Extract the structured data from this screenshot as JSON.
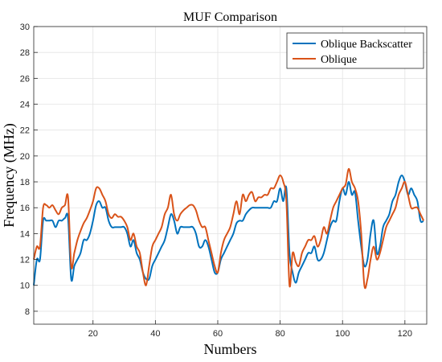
{
  "chart_data": {
    "type": "line",
    "title": "MUF Comparison",
    "xlabel": "Numbers",
    "ylabel": "Frequency (MHz)",
    "xlim": [
      1,
      127
    ],
    "ylim": [
      7,
      30
    ],
    "xticks": [
      20,
      40,
      60,
      80,
      100,
      120
    ],
    "yticks": [
      8,
      10,
      12,
      14,
      16,
      18,
      20,
      22,
      24,
      26,
      28,
      30
    ],
    "grid": true,
    "legend_position": "top-right",
    "series": [
      {
        "name": "Oblique Backscatter",
        "color": "#0072BD",
        "x": [
          1,
          2,
          3,
          4,
          5,
          6,
          7,
          8,
          9,
          10,
          11,
          12,
          13,
          14,
          15,
          16,
          17,
          18,
          19,
          20,
          21,
          22,
          23,
          24,
          25,
          26,
          27,
          28,
          29,
          30,
          31,
          32,
          33,
          34,
          35,
          36,
          37,
          38,
          39,
          40,
          41,
          42,
          43,
          44,
          45,
          46,
          47,
          48,
          49,
          50,
          51,
          52,
          53,
          54,
          55,
          56,
          57,
          58,
          59,
          60,
          61,
          62,
          63,
          64,
          65,
          66,
          67,
          68,
          69,
          70,
          71,
          72,
          73,
          74,
          75,
          76,
          77,
          78,
          79,
          80,
          81,
          82,
          83,
          84,
          85,
          86,
          87,
          88,
          89,
          90,
          91,
          92,
          93,
          94,
          95,
          96,
          97,
          98,
          99,
          100,
          101,
          102,
          103,
          104,
          105,
          106,
          107,
          108,
          109,
          110,
          111,
          112,
          113,
          114,
          115,
          116,
          117,
          118,
          119,
          120,
          121,
          122,
          123,
          124,
          125,
          126
        ],
        "y": [
          10.0,
          12.0,
          12.0,
          15.0,
          15.0,
          15.0,
          15.0,
          14.5,
          15.0,
          15.0,
          15.2,
          15.2,
          10.5,
          11.5,
          12.0,
          12.5,
          13.5,
          13.5,
          14.0,
          15.0,
          16.2,
          16.5,
          16.0,
          16.0,
          15.0,
          14.5,
          14.5,
          14.5,
          14.5,
          14.5,
          14.0,
          13.0,
          13.5,
          12.5,
          12.0,
          11.0,
          10.5,
          10.5,
          11.5,
          12.0,
          12.5,
          13.0,
          13.5,
          14.5,
          15.5,
          15.0,
          14.0,
          14.5,
          14.5,
          14.5,
          14.5,
          14.5,
          14.0,
          13.0,
          13.0,
          13.5,
          13.0,
          12.0,
          11.0,
          11.0,
          12.0,
          12.5,
          13.0,
          13.5,
          14.0,
          14.8,
          15.0,
          15.0,
          15.5,
          15.8,
          16.0,
          16.0,
          16.0,
          16.0,
          16.0,
          16.0,
          16.0,
          16.5,
          16.5,
          17.5,
          16.5,
          17.5,
          12.5,
          11.0,
          10.2,
          11.0,
          11.5,
          12.0,
          12.5,
          12.5,
          13.0,
          12.0,
          12.0,
          12.5,
          13.5,
          14.5,
          15.0,
          15.0,
          16.5,
          17.5,
          17.0,
          18.0,
          17.0,
          17.2,
          15.0,
          13.0,
          11.5,
          12.0,
          14.0,
          15.0,
          12.5,
          13.0,
          14.5,
          15.0,
          15.5,
          16.5,
          17.0,
          18.0,
          18.5,
          18.0,
          17.0,
          17.5,
          17.0,
          16.5,
          15.0,
          15.0
        ]
      },
      {
        "name": "Oblique",
        "color": "#D95319",
        "x": [
          1,
          2,
          3,
          4,
          5,
          6,
          7,
          8,
          9,
          10,
          11,
          12,
          13,
          14,
          15,
          16,
          17,
          18,
          19,
          20,
          21,
          22,
          23,
          24,
          25,
          26,
          27,
          28,
          29,
          30,
          31,
          32,
          33,
          34,
          35,
          36,
          37,
          38,
          39,
          40,
          41,
          42,
          43,
          44,
          45,
          46,
          47,
          48,
          49,
          50,
          51,
          52,
          53,
          54,
          55,
          56,
          57,
          58,
          59,
          60,
          61,
          62,
          63,
          64,
          65,
          66,
          67,
          68,
          69,
          70,
          71,
          72,
          73,
          74,
          75,
          76,
          77,
          78,
          79,
          80,
          81,
          82,
          83,
          84,
          85,
          86,
          87,
          88,
          89,
          90,
          91,
          92,
          93,
          94,
          95,
          96,
          97,
          98,
          99,
          100,
          101,
          102,
          103,
          104,
          105,
          106,
          107,
          108,
          109,
          110,
          111,
          112,
          113,
          114,
          115,
          116,
          117,
          118,
          119,
          120,
          121,
          122,
          123,
          124,
          125,
          126
        ],
        "y": [
          12.0,
          13.0,
          13.0,
          16.0,
          16.2,
          16.0,
          16.2,
          15.8,
          15.5,
          16.0,
          16.2,
          16.8,
          11.5,
          12.5,
          13.5,
          14.2,
          14.8,
          15.2,
          15.8,
          16.5,
          17.5,
          17.5,
          17.0,
          16.5,
          15.5,
          15.2,
          15.5,
          15.3,
          15.3,
          15.0,
          14.5,
          13.5,
          14.0,
          13.0,
          12.5,
          11.0,
          10.0,
          11.5,
          13.0,
          13.5,
          14.0,
          14.5,
          15.5,
          16.0,
          17.0,
          15.5,
          15.0,
          15.5,
          15.8,
          16.0,
          16.2,
          16.2,
          15.8,
          15.0,
          14.5,
          14.5,
          13.5,
          12.5,
          11.5,
          11.0,
          12.5,
          13.5,
          14.0,
          14.5,
          15.5,
          16.5,
          15.5,
          17.0,
          16.5,
          17.0,
          17.2,
          16.5,
          16.8,
          16.8,
          17.0,
          17.0,
          17.5,
          17.5,
          18.0,
          18.5,
          18.0,
          16.5,
          10.0,
          12.5,
          11.8,
          11.5,
          12.5,
          13.0,
          13.5,
          13.5,
          13.8,
          13.0,
          13.5,
          14.5,
          14.0,
          15.0,
          16.0,
          16.5,
          17.0,
          17.5,
          17.8,
          19.0,
          18.0,
          17.5,
          16.5,
          14.0,
          10.0,
          10.5,
          12.0,
          13.0,
          12.0,
          12.5,
          13.5,
          14.5,
          15.0,
          15.5,
          16.0,
          17.0,
          17.5,
          18.0,
          17.0,
          16.0,
          16.0,
          16.0,
          15.5,
          15.0
        ]
      }
    ]
  }
}
